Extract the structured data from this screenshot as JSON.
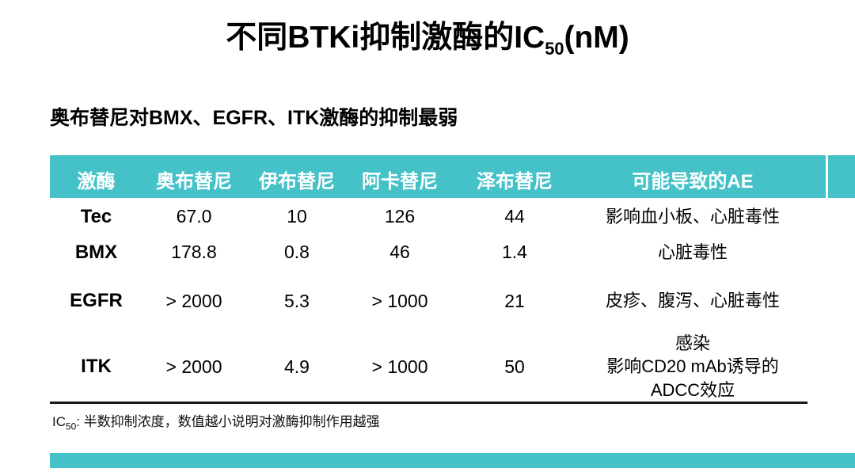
{
  "slide": {
    "title": {
      "prefix": "不同BTKi抑制激酶的IC",
      "subscript": "50",
      "suffix": "(nM)"
    },
    "subtitle": "奥布替尼对BMX、EGFR、ITK激酶的抑制最弱",
    "footnote": {
      "prefix": "IC",
      "subscript": "50",
      "suffix": ": 半数抑制浓度，数值越小说明对激酶抑制作用越强"
    }
  },
  "table": {
    "headers": [
      "激酶",
      "奥布替尼",
      "伊布替尼",
      "阿卡替尼",
      "泽布替尼",
      "可能导致的AE"
    ],
    "rows": [
      {
        "kinase": "Tec",
        "orelabrutinib": "67.0",
        "ibrutinib": "10",
        "acalabrutinib": "126",
        "zanubrutinib": "44",
        "ae": [
          "影响血小板、心脏毒性"
        ]
      },
      {
        "kinase": "BMX",
        "orelabrutinib": "178.8",
        "ibrutinib": "0.8",
        "acalabrutinib": "46",
        "zanubrutinib": "1.4",
        "ae": [
          "心脏毒性"
        ]
      },
      {
        "kinase": "EGFR",
        "orelabrutinib": "> 2000",
        "ibrutinib": "5.3",
        "acalabrutinib": "> 1000",
        "zanubrutinib": "21",
        "ae": [
          "皮疹、腹泻、心脏毒性"
        ]
      },
      {
        "kinase": "ITK",
        "orelabrutinib": "> 2000",
        "ibrutinib": "4.9",
        "acalabrutinib": "> 1000",
        "zanubrutinib": "50",
        "ae": [
          "感染",
          "影响CD20 mAb诱导的",
          "ADCC效应"
        ]
      }
    ]
  },
  "colors": {
    "accent_teal": "#45C2C8",
    "header_text": "#FFFFFF",
    "body_text": "#000000",
    "border_dark": "#1A1A1A"
  },
  "chart_data": {
    "type": "table",
    "title": "不同BTKi抑制激酶的IC50(nM)",
    "columns": [
      "激酶",
      "奥布替尼",
      "伊布替尼",
      "阿卡替尼",
      "泽布替尼",
      "可能导致的AE"
    ],
    "rows": [
      [
        "Tec",
        "67.0",
        "10",
        "126",
        "44",
        "影响血小板、心脏毒性"
      ],
      [
        "BMX",
        "178.8",
        "0.8",
        "46",
        "1.4",
        "心脏毒性"
      ],
      [
        "EGFR",
        "> 2000",
        "5.3",
        "> 1000",
        "21",
        "皮疹、腹泻、心脏毒性"
      ],
      [
        "ITK",
        "> 2000",
        "4.9",
        "> 1000",
        "50",
        "感染 影响CD20 mAb诱导的 ADCC效应"
      ]
    ]
  }
}
